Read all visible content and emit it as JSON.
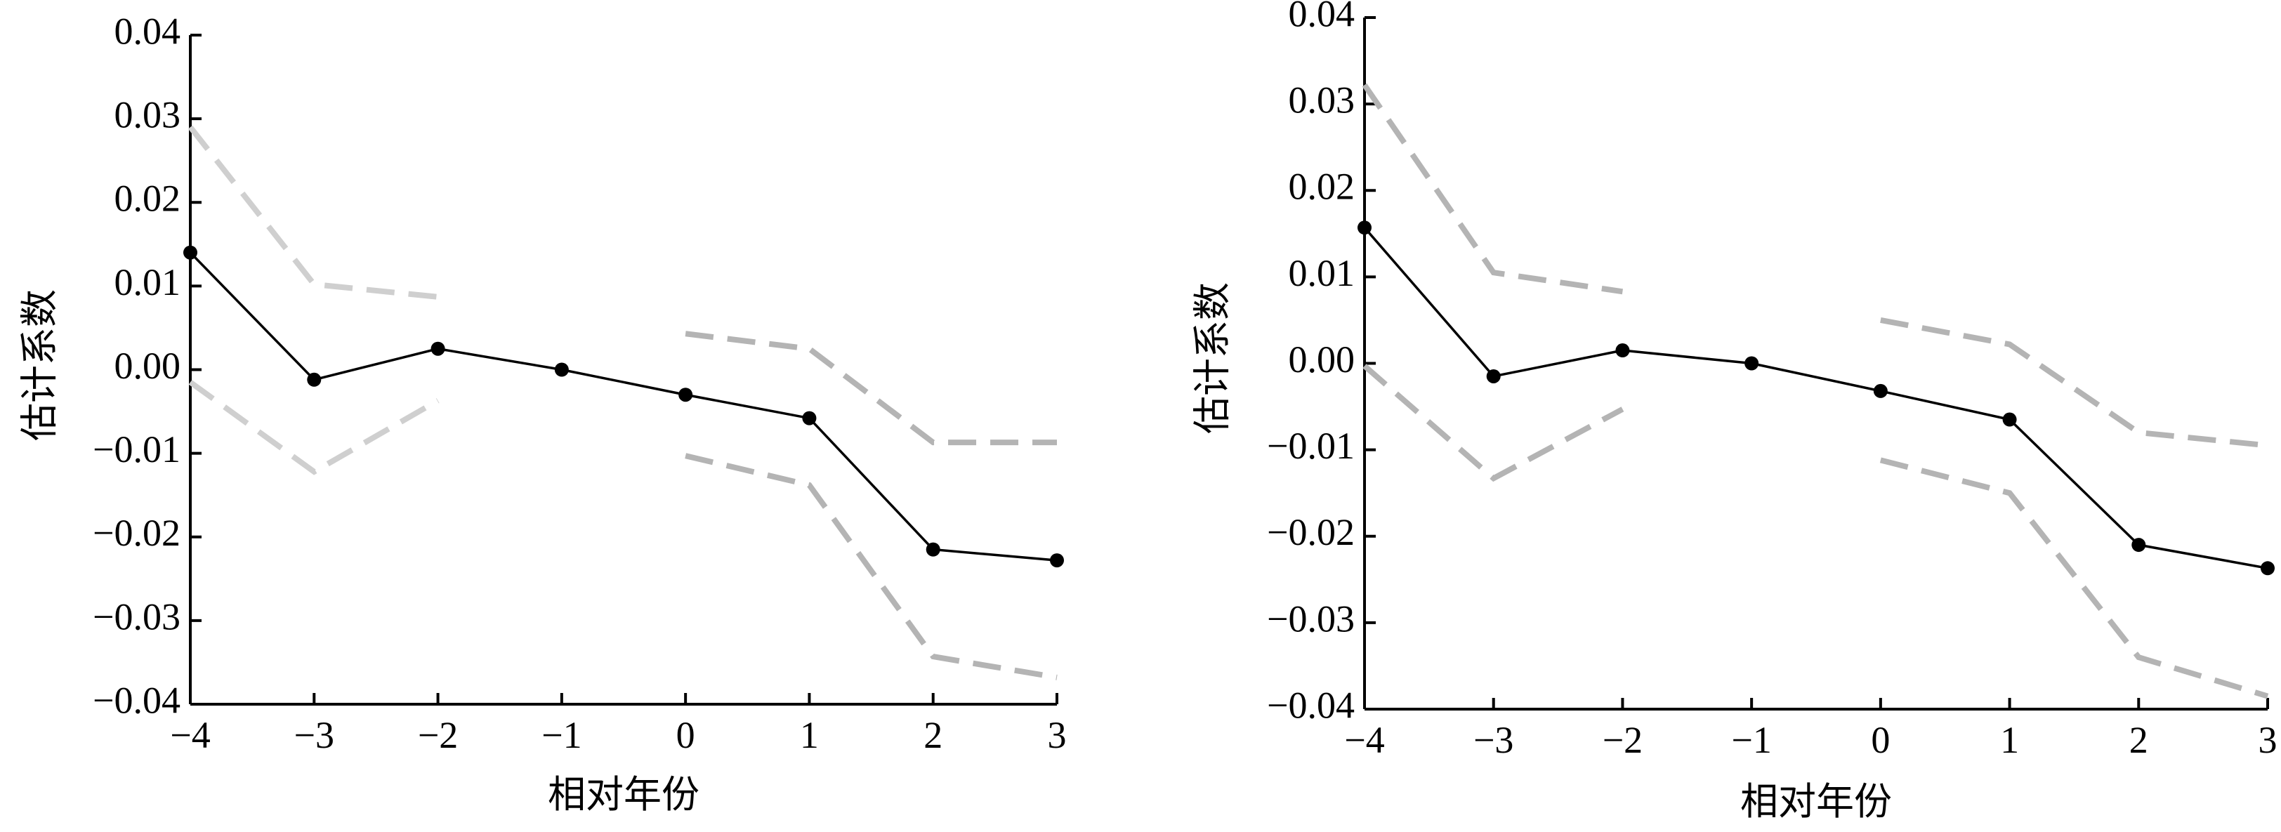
{
  "colors": {
    "estimate": "#000000",
    "ci_light": "#cfcfcf",
    "ci_dark": "#b4b4b4",
    "axis": "#000000"
  },
  "chart_data": [
    {
      "type": "line",
      "xlabel": "相对年份",
      "ylabel": "估计系数",
      "xlim": [
        -4,
        3
      ],
      "ylim": [
        -0.04,
        0.04
      ],
      "x_ticks": [
        -4,
        -3,
        -2,
        -1,
        0,
        1,
        2,
        3
      ],
      "x_tick_labels": [
        "−4",
        "−3",
        "−2",
        "−1",
        "0",
        "1",
        "2",
        "3"
      ],
      "y_ticks": [
        0.04,
        0.03,
        0.02,
        0.01,
        0.0,
        -0.01,
        -0.02,
        -0.03,
        -0.04
      ],
      "y_tick_labels": [
        "0.04",
        "0.03",
        "0.02",
        "0.01",
        "0.00",
        "−0.01",
        "−0.02",
        "−0.03",
        "−0.04"
      ],
      "grid": false,
      "series": [
        {
          "role": "estimate",
          "style": "solid-markers",
          "x": [
            -4,
            -3,
            -2,
            -1,
            0,
            1,
            2,
            3
          ],
          "y": [
            0.014,
            -0.0012,
            0.0025,
            0.0,
            -0.003,
            -0.0058,
            -0.0215,
            -0.0228
          ]
        },
        {
          "role": "upper-ci",
          "style": "dashed",
          "color_key": "ci_light",
          "x": [
            -4,
            -3,
            -2
          ],
          "y": [
            0.029,
            0.0102,
            0.0087
          ]
        },
        {
          "role": "lower-ci",
          "style": "dashed",
          "color_key": "ci_light",
          "x": [
            -4,
            -3,
            -2
          ],
          "y": [
            -0.0015,
            -0.0122,
            -0.0037
          ]
        },
        {
          "role": "upper-ci",
          "style": "dashed",
          "color_key": "ci_dark",
          "x": [
            0,
            1,
            2,
            3
          ],
          "y": [
            0.0043,
            0.0025,
            -0.0087,
            -0.0087
          ]
        },
        {
          "role": "lower-ci",
          "style": "dashed",
          "color_key": "ci_dark",
          "x": [
            0,
            1,
            2,
            3
          ],
          "y": [
            -0.0103,
            -0.0138,
            -0.0343,
            -0.0368
          ]
        }
      ]
    },
    {
      "type": "line",
      "xlabel": "相对年份",
      "ylabel": "估计系数",
      "xlim": [
        -4,
        3
      ],
      "ylim": [
        -0.04,
        0.04
      ],
      "x_ticks": [
        -4,
        -3,
        -2,
        -1,
        0,
        1,
        2,
        3
      ],
      "x_tick_labels": [
        "−4",
        "−3",
        "−2",
        "−1",
        "0",
        "1",
        "2",
        "3"
      ],
      "y_ticks": [
        0.04,
        0.03,
        0.02,
        0.01,
        0.0,
        -0.01,
        -0.02,
        -0.03,
        -0.04
      ],
      "y_tick_labels": [
        "0.04",
        "0.03",
        "0.02",
        "0.01",
        "0.00",
        "−0.01",
        "−0.02",
        "−0.03",
        "−0.04"
      ],
      "grid": false,
      "series": [
        {
          "role": "estimate",
          "style": "solid-markers",
          "x": [
            -4,
            -3,
            -2,
            -1,
            0,
            1,
            2,
            3
          ],
          "y": [
            0.0157,
            -0.0015,
            0.0015,
            0.0,
            -0.0032,
            -0.0065,
            -0.021,
            -0.0237
          ]
        },
        {
          "role": "upper-ci",
          "style": "dashed",
          "color_key": "ci_dark",
          "x": [
            -4,
            -3,
            -2
          ],
          "y": [
            0.0322,
            0.0105,
            0.0083
          ]
        },
        {
          "role": "lower-ci",
          "style": "dashed",
          "color_key": "ci_dark",
          "x": [
            -4,
            -3,
            -2
          ],
          "y": [
            -0.0003,
            -0.0133,
            -0.0053
          ]
        },
        {
          "role": "upper-ci",
          "style": "dashed",
          "color_key": "ci_dark",
          "x": [
            0,
            1,
            2,
            3
          ],
          "y": [
            0.005,
            0.0022,
            -0.008,
            -0.0095
          ]
        },
        {
          "role": "lower-ci",
          "style": "dashed",
          "color_key": "ci_dark",
          "x": [
            0,
            1,
            2,
            3
          ],
          "y": [
            -0.0112,
            -0.015,
            -0.034,
            -0.0385
          ]
        }
      ]
    }
  ]
}
